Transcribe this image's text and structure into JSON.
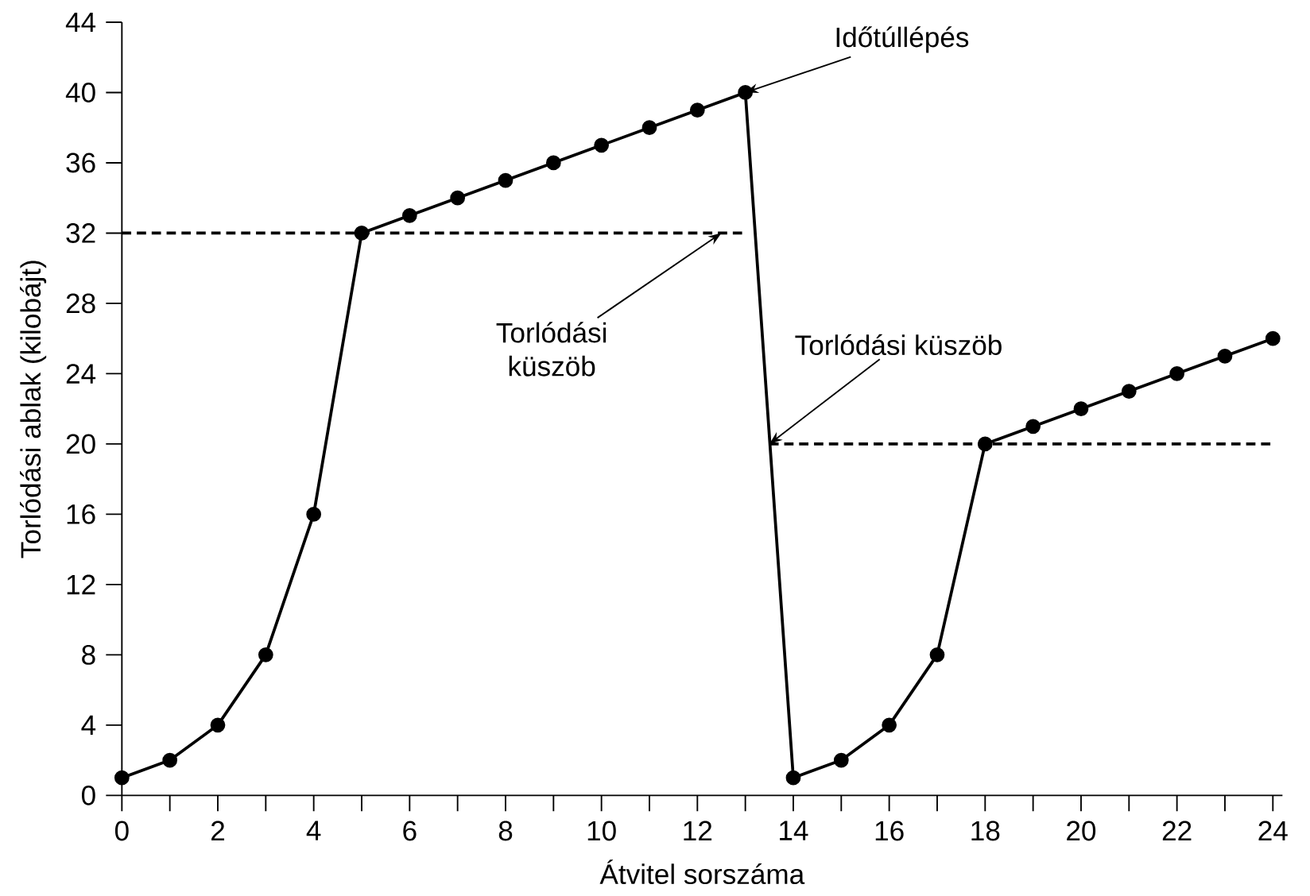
{
  "chart_data": {
    "type": "line",
    "xlabel": "Átvitel sorszáma",
    "ylabel": "Torlódási ablak (kilobájt)",
    "x": [
      0,
      1,
      2,
      3,
      4,
      5,
      6,
      7,
      8,
      9,
      10,
      11,
      12,
      13,
      14,
      15,
      16,
      17,
      18,
      19,
      20,
      21,
      22,
      23,
      24
    ],
    "series": [
      {
        "color": "#000000",
        "marker": "circle",
        "line_style": "solid",
        "values": [
          1,
          2,
          4,
          8,
          16,
          32,
          33,
          34,
          35,
          36,
          37,
          38,
          39,
          40,
          1,
          2,
          4,
          8,
          20,
          21,
          22,
          23,
          24,
          25,
          26
        ]
      },
      {
        "color": "#000000",
        "marker": "none",
        "line_style": "dashed",
        "x": [
          0,
          13
        ],
        "values": [
          32,
          32
        ]
      },
      {
        "color": "#000000",
        "marker": "none",
        "line_style": "dashed",
        "x": [
          13.5,
          24
        ],
        "values": [
          20,
          20
        ]
      }
    ],
    "xlim": [
      0,
      24.2
    ],
    "ylim": [
      0,
      44
    ],
    "xticks": [
      0,
      {
        "value": 1,
        "label": null
      },
      2,
      {
        "value": 3,
        "label": null
      },
      4,
      {
        "value": 5,
        "label": null
      },
      6,
      {
        "value": 7,
        "label": null
      },
      8,
      {
        "value": 9,
        "label": null
      },
      10,
      {
        "value": 11,
        "label": null
      },
      12,
      {
        "value": 13,
        "label": null
      },
      14,
      {
        "value": 15,
        "label": null
      },
      16,
      {
        "value": 17,
        "label": null
      },
      18,
      {
        "value": 19,
        "label": null
      },
      20,
      {
        "value": 21,
        "label": null
      },
      22,
      {
        "value": 23,
        "label": null
      },
      24
    ],
    "yticks": [
      0,
      4,
      8,
      12,
      16,
      20,
      24,
      28,
      32,
      36,
      40,
      44
    ],
    "annotations": [
      {
        "text": "Időtúllépés",
        "x": 13,
        "y": 40
      },
      {
        "text": "Torlódási küszöb",
        "x": 12.5,
        "y": 32
      },
      {
        "text": "Torlódási küszöb",
        "x": 13.5,
        "y": 20
      }
    ]
  }
}
